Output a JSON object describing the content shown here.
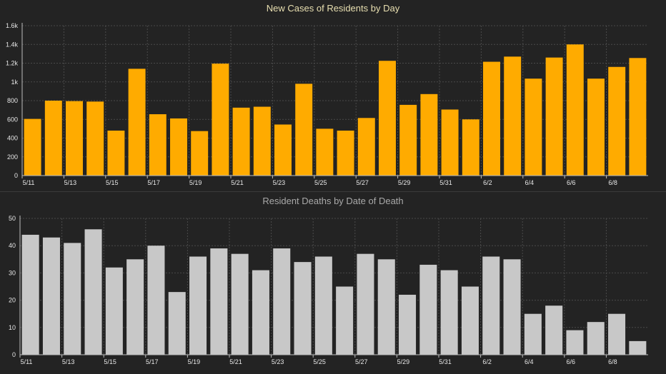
{
  "chart_data": [
    {
      "type": "bar",
      "title": "New Cases of Residents by Day",
      "categories": [
        "5/11",
        "5/12",
        "5/13",
        "5/14",
        "5/15",
        "5/16",
        "5/17",
        "5/18",
        "5/19",
        "5/20",
        "5/21",
        "5/22",
        "5/23",
        "5/24",
        "5/25",
        "5/26",
        "5/27",
        "5/28",
        "5/29",
        "5/30",
        "5/31",
        "6/1",
        "6/2",
        "6/3",
        "6/4",
        "6/5",
        "6/6",
        "6/7",
        "6/8",
        "6/9"
      ],
      "x_tick_labels": [
        "5/11",
        "5/13",
        "5/15",
        "5/17",
        "5/19",
        "5/21",
        "5/23",
        "5/25",
        "5/27",
        "5/29",
        "5/31",
        "6/2",
        "6/4",
        "6/6",
        "6/8"
      ],
      "values": [
        605,
        800,
        795,
        790,
        480,
        1140,
        655,
        610,
        475,
        1195,
        725,
        735,
        545,
        980,
        500,
        480,
        615,
        1225,
        755,
        870,
        705,
        600,
        1215,
        1270,
        1035,
        1260,
        1400,
        1035,
        1160,
        1255
      ],
      "y_tick_labels": [
        "0",
        "200",
        "400",
        "600",
        "800",
        "1k",
        "1.2k",
        "1.4k",
        "1.6k"
      ],
      "ylim": [
        0,
        1600
      ],
      "grid": true,
      "bar_color": "#ffab00"
    },
    {
      "type": "bar",
      "title": "Resident Deaths by Date of Death",
      "categories": [
        "5/11",
        "5/12",
        "5/13",
        "5/14",
        "5/15",
        "5/16",
        "5/17",
        "5/18",
        "5/19",
        "5/20",
        "5/21",
        "5/22",
        "5/23",
        "5/24",
        "5/25",
        "5/26",
        "5/27",
        "5/28",
        "5/29",
        "5/30",
        "5/31",
        "6/1",
        "6/2",
        "6/3",
        "6/4",
        "6/5",
        "6/6",
        "6/7",
        "6/8",
        "6/9"
      ],
      "x_tick_labels": [
        "5/11",
        "5/13",
        "5/15",
        "5/17",
        "5/19",
        "5/21",
        "5/23",
        "5/25",
        "5/27",
        "5/29",
        "5/31",
        "6/2",
        "6/4",
        "6/6",
        "6/8"
      ],
      "values": [
        44,
        43,
        41,
        46,
        32,
        35,
        40,
        23,
        36,
        39,
        37,
        31,
        39,
        34,
        36,
        25,
        37,
        35,
        22,
        33,
        31,
        25,
        36,
        35,
        15,
        18,
        9,
        12,
        15,
        5
      ],
      "y_tick_labels": [
        "0",
        "10",
        "20",
        "30",
        "40",
        "50"
      ],
      "ylim": [
        0,
        50
      ],
      "grid": true,
      "bar_color": "#c8c8c8"
    }
  ],
  "colors": {
    "background": "#232323",
    "grid": "#4a4a4a",
    "axis": "#bdbdbd",
    "text": "#e6e6e6"
  }
}
